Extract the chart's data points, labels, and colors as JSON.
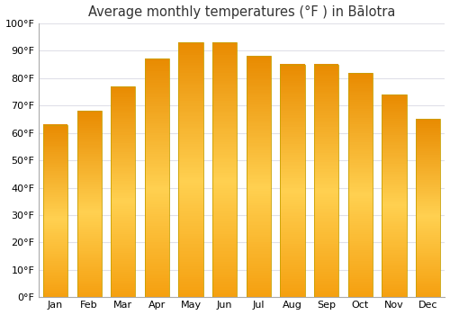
{
  "title": "Average monthly temperatures (°F ) in Bālotra",
  "months": [
    "Jan",
    "Feb",
    "Mar",
    "Apr",
    "May",
    "Jun",
    "Jul",
    "Aug",
    "Sep",
    "Oct",
    "Nov",
    "Dec"
  ],
  "values": [
    63,
    68,
    77,
    87,
    93,
    93,
    88,
    85,
    85,
    82,
    74,
    65
  ],
  "bar_color_center": "#FFD966",
  "bar_color_edge": "#F5A623",
  "bar_color_top": "#E8921A",
  "background_color": "#ffffff",
  "plot_bg_color": "#ffffff",
  "ylim": [
    0,
    100
  ],
  "yticks": [
    0,
    10,
    20,
    30,
    40,
    50,
    60,
    70,
    80,
    90,
    100
  ],
  "grid_color": "#e0e0e8",
  "title_fontsize": 10.5,
  "bar_width": 0.72,
  "bar_edge_color": "#c8a000",
  "figsize": [
    5.0,
    3.5
  ],
  "dpi": 100
}
